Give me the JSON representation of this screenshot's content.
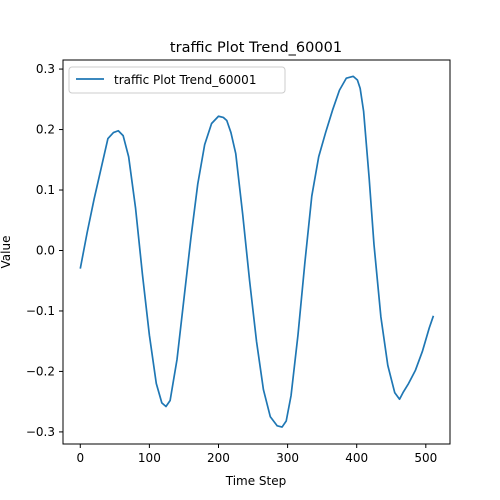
{
  "chart_data": {
    "type": "line",
    "title": "traffic Plot Trend_60001",
    "xlabel": "Time Step",
    "ylabel": "Value",
    "xlim": [
      -25,
      535
    ],
    "ylim": [
      -0.32,
      0.315
    ],
    "xticks": [
      0,
      100,
      200,
      300,
      400,
      500
    ],
    "yticks": [
      -0.3,
      -0.2,
      -0.1,
      0.0,
      0.1,
      0.2,
      0.3
    ],
    "xtick_labels": [
      "0",
      "100",
      "200",
      "300",
      "400",
      "500"
    ],
    "ytick_labels": [
      "−0.3",
      "−0.2",
      "−0.1",
      "0.0",
      "0.1",
      "0.2",
      "0.3"
    ],
    "grid": false,
    "legend_position": "top-left",
    "line_color": "#1f77b4",
    "series": [
      {
        "name": "traffic Plot Trend_60001",
        "x": [
          0,
          10,
          20,
          30,
          40,
          48,
          55,
          62,
          70,
          80,
          90,
          100,
          110,
          118,
          124,
          130,
          140,
          150,
          160,
          170,
          180,
          190,
          200,
          207,
          212,
          218,
          225,
          235,
          245,
          255,
          265,
          275,
          285,
          292,
          298,
          305,
          315,
          325,
          335,
          345,
          355,
          365,
          375,
          385,
          395,
          401,
          405,
          410,
          418,
          425,
          435,
          445,
          455,
          462,
          467,
          475,
          485,
          495,
          505,
          511
        ],
        "y": [
          -0.03,
          0.03,
          0.085,
          0.135,
          0.185,
          0.195,
          0.198,
          0.19,
          0.155,
          0.07,
          -0.04,
          -0.14,
          -0.22,
          -0.252,
          -0.258,
          -0.248,
          -0.18,
          -0.08,
          0.02,
          0.11,
          0.175,
          0.21,
          0.222,
          0.22,
          0.215,
          0.195,
          0.16,
          0.06,
          -0.05,
          -0.15,
          -0.23,
          -0.275,
          -0.29,
          -0.292,
          -0.282,
          -0.24,
          -0.14,
          -0.02,
          0.09,
          0.155,
          0.195,
          0.232,
          0.265,
          0.285,
          0.288,
          0.282,
          0.268,
          0.23,
          0.12,
          0.01,
          -0.11,
          -0.19,
          -0.235,
          -0.246,
          -0.235,
          -0.22,
          -0.198,
          -0.167,
          -0.128,
          -0.108
        ]
      }
    ]
  }
}
